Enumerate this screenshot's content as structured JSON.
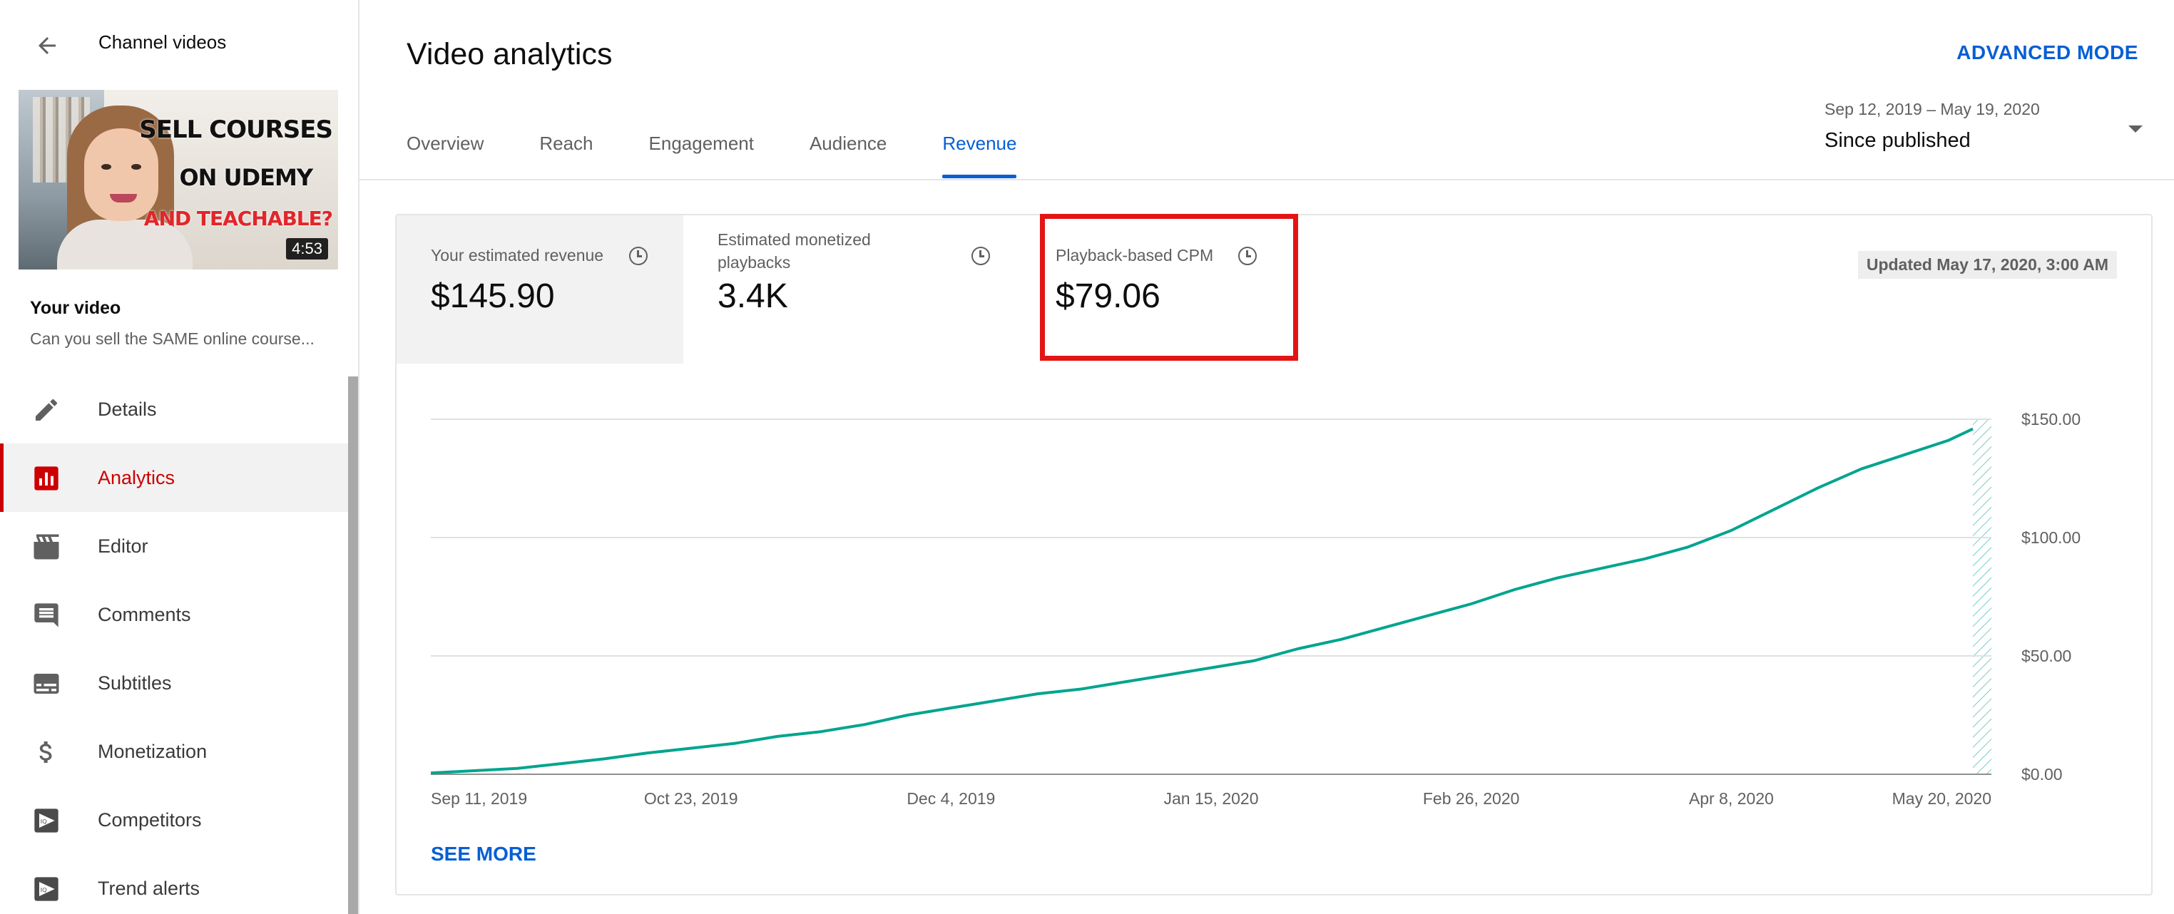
{
  "sidebar": {
    "back_title": "Channel videos",
    "thumbnail": {
      "line1": "SELL COURSES",
      "line2": "ON UDEMY",
      "line3": "AND TEACHABLE?",
      "duration": "4:53"
    },
    "your_video_label": "Your video",
    "video_title": "Can you sell the SAME online course...",
    "items": [
      {
        "label": "Details",
        "icon": "pencil-icon"
      },
      {
        "label": "Analytics",
        "icon": "analytics-icon",
        "active": true
      },
      {
        "label": "Editor",
        "icon": "clapperboard-icon"
      },
      {
        "label": "Comments",
        "icon": "comment-icon"
      },
      {
        "label": "Subtitles",
        "icon": "subtitles-icon"
      },
      {
        "label": "Monetization",
        "icon": "dollar-icon"
      },
      {
        "label": "Competitors",
        "icon": "vidiq-icon"
      },
      {
        "label": "Trend alerts",
        "icon": "vidiq-icon"
      }
    ]
  },
  "header": {
    "title": "Video analytics",
    "advanced_mode": "ADVANCED MODE",
    "tabs": [
      {
        "label": "Overview"
      },
      {
        "label": "Reach"
      },
      {
        "label": "Engagement"
      },
      {
        "label": "Audience"
      },
      {
        "label": "Revenue",
        "active": true
      }
    ],
    "date_range": "Sep 12, 2019 – May 19, 2020",
    "date_selection": "Since published"
  },
  "metrics": {
    "revenue": {
      "label": "Your estimated revenue",
      "value": "$145.90"
    },
    "playbacks": {
      "label": "Estimated monetized playbacks",
      "value": "3.4K"
    },
    "cpm": {
      "label": "Playback-based CPM",
      "value": "$79.06"
    },
    "updated": "Updated May 17, 2020, 3:00 AM"
  },
  "see_more": "SEE MORE",
  "colors": {
    "accent": "#065fd4",
    "active_nav": "#cc0000",
    "line": "#00a48f",
    "highlight_box": "#e31414"
  },
  "chart_data": {
    "type": "line",
    "x_ticks": [
      "Sep 11, 2019",
      "Oct 23, 2019",
      "Dec 4, 2019",
      "Jan 15, 2020",
      "Feb 26, 2020",
      "Apr 8, 2020",
      "May 20, 2020"
    ],
    "y_ticks": [
      "$0.00",
      "$50.00",
      "$100.00",
      "$150.00"
    ],
    "ylim": [
      0,
      150
    ],
    "xlim_days": [
      0,
      252
    ],
    "grid": true,
    "series": [
      {
        "days": [
          0,
          7,
          14,
          21,
          28,
          35,
          42,
          49,
          56,
          63,
          70,
          77,
          84,
          91,
          98,
          105,
          112,
          119,
          126,
          133,
          140,
          147,
          154,
          161,
          168,
          175,
          182,
          189,
          196,
          203,
          210,
          217,
          224,
          231,
          238,
          245,
          249
        ],
        "values": [
          0.5,
          1.5,
          2.5,
          4.5,
          6.5,
          9,
          11,
          13,
          16,
          18,
          21,
          25,
          28,
          31,
          34,
          36,
          39,
          42,
          45,
          48,
          53,
          57,
          62,
          67,
          72,
          78,
          83,
          87,
          91,
          96,
          103,
          112,
          121,
          129,
          135,
          141,
          145.9
        ]
      }
    ],
    "forecast_start_day": 249
  }
}
